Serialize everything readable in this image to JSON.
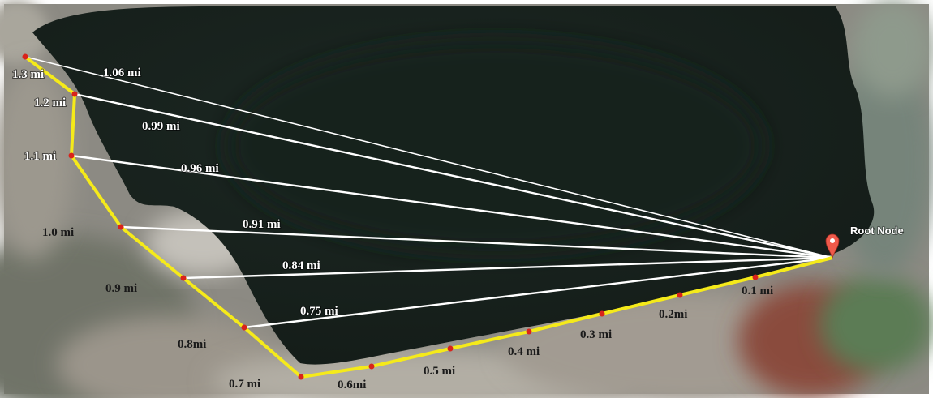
{
  "root": {
    "label": "Root Node",
    "marker_color": "#ef5a4b"
  },
  "path_color": "#f5ea1a",
  "node_color": "#d9231b",
  "link_color": "#ffffff",
  "path_labels": [
    "0.1 mi",
    "0.2mi",
    "0.3 mi",
    "0.4 mi",
    "0.5 mi",
    "0.6mi",
    "0.7 mi",
    "0.8mi",
    "0.9 mi",
    "1.0 mi",
    "1.1 mi",
    "1.2 mi",
    "1.3 mi"
  ],
  "link_labels": [
    "1.06 mi",
    "0.99 mi",
    "0.96 mi",
    "0.91 mi",
    "0.84 mi",
    "0.75 mi"
  ]
}
